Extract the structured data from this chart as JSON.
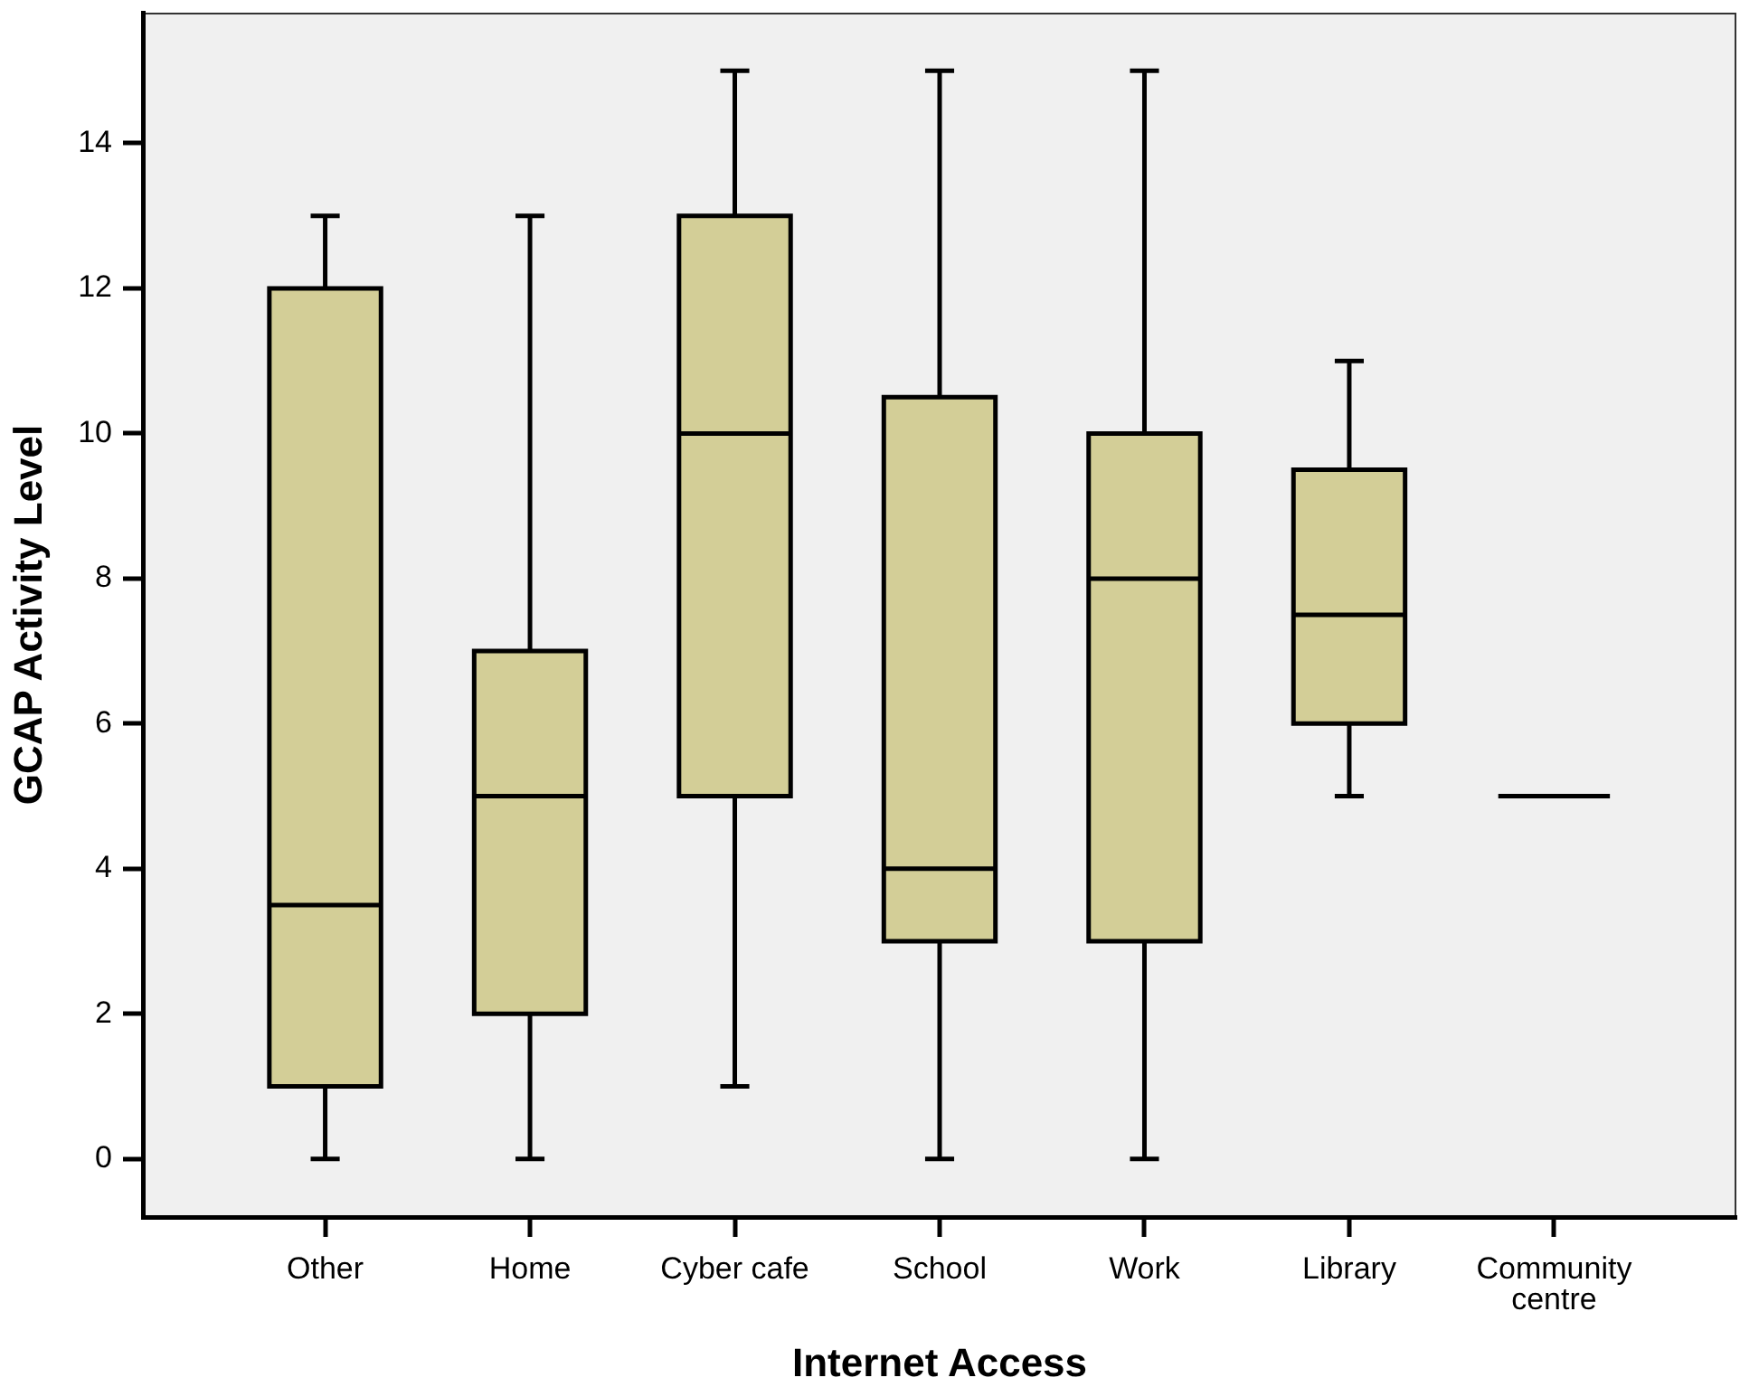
{
  "chart_data": {
    "type": "box",
    "xlabel": "Internet Access",
    "ylabel": "GCAP Activity Level",
    "categories": [
      "Other",
      "Home",
      "Cyber cafe",
      "School",
      "Work",
      "Library",
      "Community centre"
    ],
    "colors": [
      "#d3ce97",
      "#d3ce97",
      "#d3ce97",
      "#d3ce97",
      "#d3ce97",
      "#d3ce97",
      "#000000"
    ],
    "boxes": [
      {
        "low": 0,
        "q1": 1,
        "median": 3.5,
        "q3": 12,
        "high": 13
      },
      {
        "low": 0,
        "q1": 2,
        "median": 5,
        "q3": 7,
        "high": 13
      },
      {
        "low": 1,
        "q1": 5,
        "median": 10,
        "q3": 13,
        "high": 15
      },
      {
        "low": 0,
        "q1": 3,
        "median": 4,
        "q3": 10.5,
        "high": 15
      },
      {
        "low": 0,
        "q1": 3,
        "median": 8,
        "q3": 10,
        "high": 15
      },
      {
        "low": 5,
        "q1": 6,
        "median": 7.5,
        "q3": 9.5,
        "high": 11
      },
      {
        "low": 5,
        "q1": 5,
        "median": 5,
        "q3": 5,
        "high": 5
      }
    ],
    "ylim": [
      -0.8,
      15.8
    ],
    "yticks": [
      0,
      2,
      4,
      6,
      8,
      10,
      12,
      14
    ]
  }
}
